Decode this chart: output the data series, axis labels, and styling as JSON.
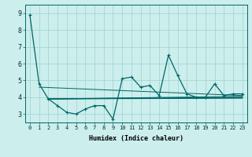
{
  "main_x": [
    0,
    1,
    2,
    3,
    4,
    5,
    6,
    7,
    8,
    9,
    10,
    11,
    12,
    13,
    14,
    15,
    16,
    17,
    18,
    19,
    20,
    21,
    22,
    23
  ],
  "main_y": [
    8.9,
    4.8,
    3.9,
    3.5,
    3.1,
    3.0,
    3.3,
    3.5,
    3.5,
    2.7,
    5.1,
    5.2,
    4.6,
    4.7,
    4.1,
    6.5,
    5.3,
    4.2,
    4.0,
    4.0,
    4.8,
    4.1,
    4.2,
    4.2
  ],
  "trend_lines": [
    {
      "x": [
        1,
        23
      ],
      "y": [
        4.6,
        4.1
      ]
    },
    {
      "x": [
        2,
        23
      ],
      "y": [
        3.9,
        4.05
      ]
    },
    {
      "x": [
        2,
        23
      ],
      "y": [
        3.9,
        4.0
      ]
    },
    {
      "x": [
        2,
        23
      ],
      "y": [
        3.9,
        3.97
      ]
    },
    {
      "x": [
        2,
        23
      ],
      "y": [
        3.9,
        3.94
      ]
    }
  ],
  "bg_color": "#cceeed",
  "line_color": "#006666",
  "grid_color": "#99d4d0",
  "xlabel": "Humidex (Indice chaleur)",
  "ylim": [
    2.5,
    9.5
  ],
  "xlim": [
    -0.5,
    23.5
  ],
  "yticks": [
    3,
    4,
    5,
    6,
    7,
    8,
    9
  ],
  "xticks": [
    0,
    1,
    2,
    3,
    4,
    5,
    6,
    7,
    8,
    9,
    10,
    11,
    12,
    13,
    14,
    15,
    16,
    17,
    18,
    19,
    20,
    21,
    22,
    23
  ],
  "xlabel_fontsize": 6,
  "ytick_fontsize": 6,
  "xtick_fontsize": 5
}
